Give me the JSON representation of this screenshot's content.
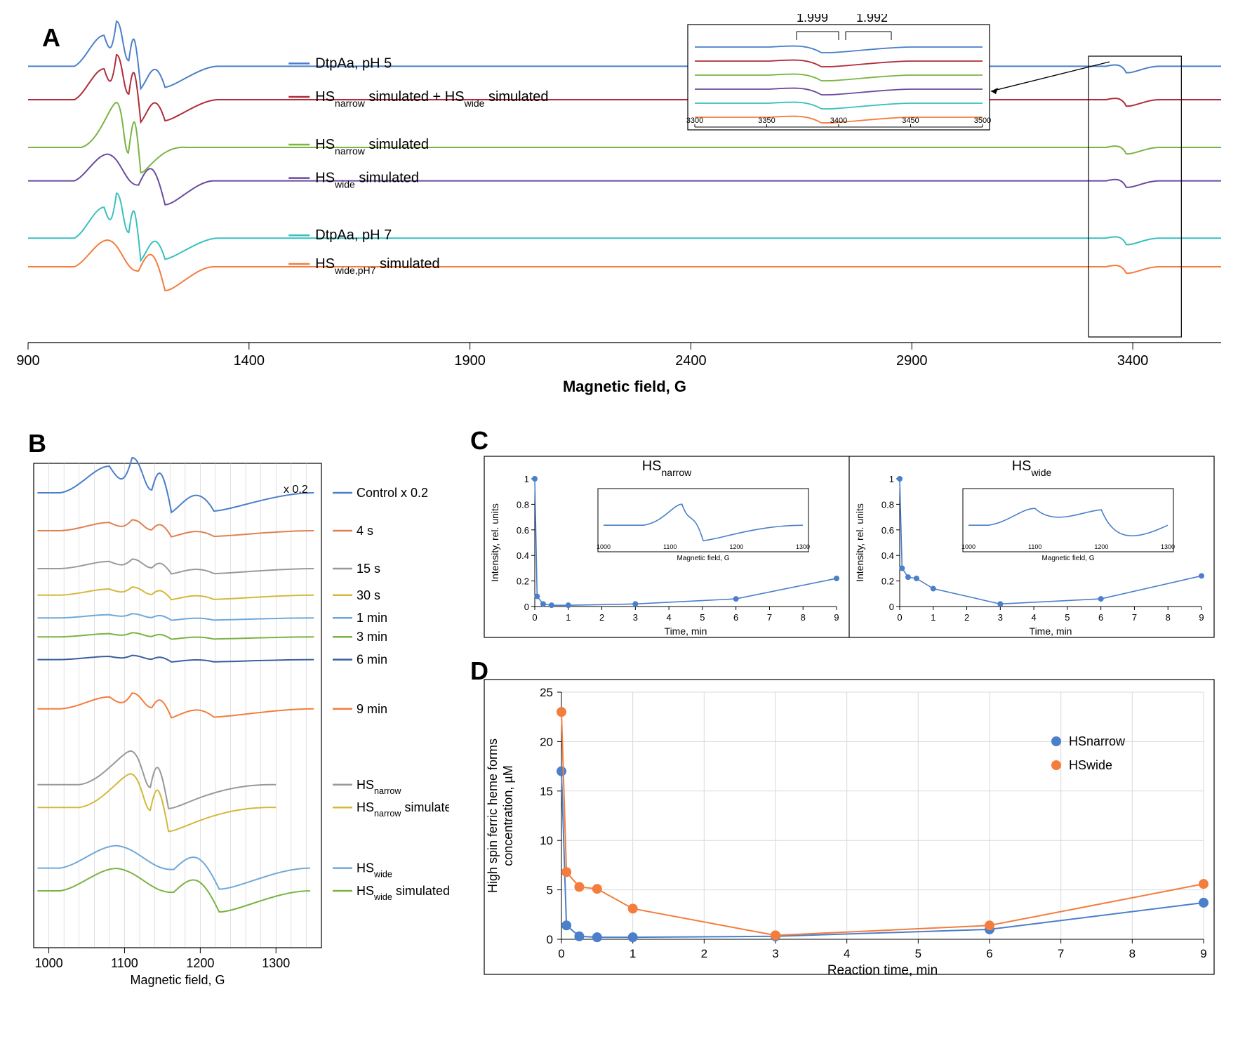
{
  "panelA": {
    "label": "A",
    "xlabel": "Magnetic field, G",
    "xlim": [
      900,
      3600
    ],
    "xticks": [
      900,
      1400,
      1900,
      2400,
      2900,
      3400
    ],
    "inset_box": {
      "x": [
        3300,
        3510
      ]
    },
    "inset": {
      "xlabel_ticks": [
        3300,
        3350,
        3400,
        3450,
        3500
      ],
      "annot": [
        "1.999",
        "1.992"
      ]
    },
    "series": [
      {
        "label": "DtpAa, pH 5",
        "color": "#4a7fc9",
        "yoffset": 5.2
      },
      {
        "label": "HS_narrow simulated + HS_wide simulated",
        "color": "#b02c3a",
        "yoffset": 4.5
      },
      {
        "label": "HS_narrow simulated",
        "color": "#7bb343",
        "yoffset": 3.5
      },
      {
        "label": "HS_wide simulated",
        "color": "#6b4a9e",
        "yoffset": 2.8
      },
      {
        "label": "DtpAa, pH 7",
        "color": "#3abfbf",
        "yoffset": 1.6
      },
      {
        "label": "HS_wide,pH7 simulated",
        "color": "#f47c3c",
        "yoffset": 1.0
      }
    ]
  },
  "panelB": {
    "label": "B",
    "xlabel": "Magnetic field, G",
    "xticks": [
      1000,
      1100,
      1200,
      1300
    ],
    "annot_x02": "x 0.2",
    "series": [
      {
        "label": "Control x 0.2",
        "color": "#4a7fc9",
        "yoffset": 12
      },
      {
        "label": "4 s",
        "color": "#e08050",
        "yoffset": 11
      },
      {
        "label": "15 s",
        "color": "#999999",
        "yoffset": 10
      },
      {
        "label": "30 s",
        "color": "#d4b83a",
        "yoffset": 9.3
      },
      {
        "label": "1 min",
        "color": "#6fa8d8",
        "yoffset": 8.7
      },
      {
        "label": "3 min",
        "color": "#7bb343",
        "yoffset": 8.2
      },
      {
        "label": "6 min",
        "color": "#3a5f9e",
        "yoffset": 7.6
      },
      {
        "label": "9 min",
        "color": "#f47c3c",
        "yoffset": 6.3
      },
      {
        "label": "HS_narrow",
        "color": "#999999",
        "yoffset": 4.3
      },
      {
        "label": "HS_narrow simulated",
        "color": "#d4b83a",
        "yoffset": 3.7
      },
      {
        "label": "HS_wide",
        "color": "#6fa8d8",
        "yoffset": 2.1
      },
      {
        "label": "HS_wide simulated",
        "color": "#7bb343",
        "yoffset": 1.5
      }
    ]
  },
  "panelC": {
    "label": "C",
    "subplots": [
      {
        "title": "HS_narrow",
        "ylabel": "Intensity, rel. units",
        "xlabel": "Time, min",
        "color": "#4a7fc9",
        "yticks": [
          0,
          0.2,
          0.4,
          0.6,
          0.8,
          1
        ],
        "xticks": [
          0,
          1,
          2,
          3,
          4,
          5,
          6,
          7,
          8,
          9
        ],
        "inset_xticks": [
          1000,
          1100,
          1200,
          1300
        ],
        "inset_xlabel": "Magnetic field, G",
        "points": [
          [
            0,
            1
          ],
          [
            0.07,
            0.08
          ],
          [
            0.25,
            0.02
          ],
          [
            0.5,
            0.01
          ],
          [
            1,
            0.01
          ],
          [
            3,
            0.02
          ],
          [
            6,
            0.06
          ],
          [
            9,
            0.22
          ]
        ]
      },
      {
        "title": "HS_wide",
        "ylabel": "Intensity, rel. units",
        "xlabel": "Time, min",
        "color": "#4a7fc9",
        "yticks": [
          0,
          0.2,
          0.4,
          0.6,
          0.8,
          1
        ],
        "xticks": [
          0,
          1,
          2,
          3,
          4,
          5,
          6,
          7,
          8,
          9
        ],
        "inset_xticks": [
          1000,
          1100,
          1200,
          1300
        ],
        "inset_xlabel": "Magnetic field, G",
        "points": [
          [
            0,
            1
          ],
          [
            0.07,
            0.3
          ],
          [
            0.25,
            0.23
          ],
          [
            0.5,
            0.22
          ],
          [
            1,
            0.14
          ],
          [
            3,
            0.02
          ],
          [
            6,
            0.06
          ],
          [
            9,
            0.24
          ]
        ]
      }
    ]
  },
  "panelD": {
    "label": "D",
    "ylabel_line1": "High spin ferric heme forms",
    "ylabel_line2": "concentration, µM",
    "xlabel": "Reaction time, min",
    "yticks": [
      0,
      5,
      10,
      15,
      20,
      25
    ],
    "xticks": [
      0,
      1,
      2,
      3,
      4,
      5,
      6,
      7,
      8,
      9
    ],
    "grid_color": "#d9d9d9",
    "series": [
      {
        "label": "HSnarrow",
        "color": "#4a7fc9",
        "points": [
          [
            0,
            17
          ],
          [
            0.07,
            1.4
          ],
          [
            0.25,
            0.3
          ],
          [
            0.5,
            0.2
          ],
          [
            1,
            0.2
          ],
          [
            3,
            0.3
          ],
          [
            6,
            1.0
          ],
          [
            9,
            3.7
          ]
        ]
      },
      {
        "label": "HSwide",
        "color": "#f47c3c",
        "points": [
          [
            0,
            23
          ],
          [
            0.07,
            6.8
          ],
          [
            0.25,
            5.3
          ],
          [
            0.5,
            5.1
          ],
          [
            1,
            3.1
          ],
          [
            3,
            0.4
          ],
          [
            6,
            1.4
          ],
          [
            9,
            5.6
          ]
        ]
      }
    ]
  },
  "colors": {
    "axis": "#000000",
    "background": "#ffffff"
  }
}
